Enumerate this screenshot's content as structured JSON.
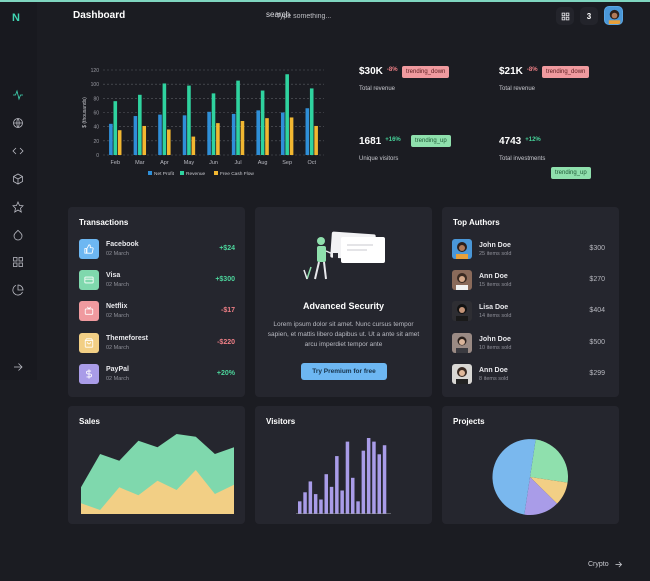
{
  "app": {
    "logo": "N",
    "page_title": "Dashboard",
    "search": {
      "icon_label": "search",
      "placeholder": "Type something..."
    },
    "notification_count": "3"
  },
  "sidebar": {
    "icons": [
      "activity-icon",
      "globe-icon",
      "code-icon",
      "box-icon",
      "star-icon",
      "droplet-icon",
      "grid-icon",
      "pie-chart-icon"
    ],
    "collapse_icon": "arrow-right-icon"
  },
  "chart_data": [
    {
      "type": "bar",
      "ylabel": "$ (thousands)",
      "ylim": [
        0,
        120
      ],
      "yticks": [
        0,
        20,
        40,
        60,
        80,
        100,
        120
      ],
      "grid": true,
      "legend_position": "bottom",
      "categories": [
        "Feb",
        "Mar",
        "Apr",
        "May",
        "Jun",
        "Jul",
        "Aug",
        "Sep",
        "Oct"
      ],
      "series": [
        {
          "name": "Net Profit",
          "color": "#2f8fd8",
          "values": [
            44,
            55,
            57,
            56,
            61,
            58,
            63,
            60,
            66
          ]
        },
        {
          "name": "Revenue",
          "color": "#2fd39f",
          "values": [
            76,
            85,
            101,
            98,
            87,
            105,
            91,
            114,
            94
          ]
        },
        {
          "name": "Free Cash Flow",
          "color": "#f2b731",
          "values": [
            35,
            41,
            36,
            26,
            45,
            48,
            52,
            53,
            41
          ]
        }
      ]
    },
    {
      "type": "area",
      "title": "Sales",
      "series": [
        {
          "name": "",
          "color": "#7fd8ad",
          "values": [
            20,
            45,
            40,
            55,
            50,
            60,
            58,
            45,
            50
          ]
        },
        {
          "name": "",
          "color": "#f2cf85",
          "values": [
            8,
            3,
            20,
            14,
            25,
            18,
            33,
            15,
            22
          ]
        }
      ]
    },
    {
      "type": "bar",
      "title": "Visitors",
      "series": [
        {
          "name": "",
          "color": "#a99ce8",
          "values": [
            7,
            12,
            18,
            11,
            8,
            22,
            15,
            32,
            13,
            40,
            20,
            7,
            35,
            42,
            40,
            33,
            38
          ]
        }
      ]
    },
    {
      "type": "pie",
      "title": "Projects",
      "series": [
        {
          "name": "",
          "color": "#8fe0ad",
          "values": [
            25
          ]
        },
        {
          "name": "",
          "color": "#f2cf85",
          "values": [
            10
          ]
        },
        {
          "name": "",
          "color": "#a99ce8",
          "values": [
            15
          ]
        },
        {
          "name": "",
          "color": "#7ab8ee",
          "values": [
            50
          ]
        }
      ]
    }
  ],
  "stats": [
    {
      "value": "$30K",
      "change": "-8%",
      "direction": "down",
      "label": "Total revenue",
      "chip": "trending_down"
    },
    {
      "value": "$21K",
      "change": "-8%",
      "direction": "down",
      "label": "Total revenue",
      "chip": "trending_down"
    },
    {
      "value": "1681",
      "change": "+16%",
      "direction": "up",
      "label": "Unique visitors",
      "chip": "trending_up"
    },
    {
      "value": "4743",
      "change": "+12%",
      "direction": "up",
      "label": "Total investments",
      "chip": "trending_up"
    }
  ],
  "transactions": {
    "title": "Transactions",
    "items": [
      {
        "name": "Facebook",
        "date": "02 March",
        "amount": "+$24",
        "color": "#6db7f2",
        "icon": "thumbs-up-icon"
      },
      {
        "name": "Visa",
        "date": "02 March",
        "amount": "+$300",
        "color": "#7fd8ad",
        "icon": "credit-card-icon"
      },
      {
        "name": "Netflix",
        "date": "02 March",
        "amount": "-$17",
        "color": "#f09a9f",
        "icon": "tv-icon"
      },
      {
        "name": "Themeforest",
        "date": "02 March",
        "amount": "-$220",
        "color": "#f2cf85",
        "icon": "shopping-bag-icon"
      },
      {
        "name": "PayPal",
        "date": "02 March",
        "amount": "+20%",
        "color": "#a99ce8",
        "icon": "dollar-icon"
      }
    ]
  },
  "security": {
    "title": "Advanced Security",
    "text": "Lorem ipsum dolor sit amet. Nunc cursus tempor sapien, et mattis libero dapibus ut. Ut a ante sit amet arcu imperdiet tempor ante",
    "button": "Try Premium for free"
  },
  "authors": {
    "title": "Top Authors",
    "items": [
      {
        "name": "John Doe",
        "sub": "25 items sold",
        "amount": "$300",
        "avatar_color": "#4a97d8"
      },
      {
        "name": "Ann Doe",
        "sub": "15 items sold",
        "amount": "$270",
        "avatar_color": "#8a6a5a"
      },
      {
        "name": "Lisa Doe",
        "sub": "14 items sold",
        "amount": "$404",
        "avatar_color": "#2e2e33"
      },
      {
        "name": "John Doe",
        "sub": "10 items sold",
        "amount": "$500",
        "avatar_color": "#9a8a84"
      },
      {
        "name": "Ann Doe",
        "sub": "8 items sold",
        "amount": "$299",
        "avatar_color": "#d9d7d4"
      }
    ]
  },
  "footer": {
    "link": "Crypto"
  }
}
